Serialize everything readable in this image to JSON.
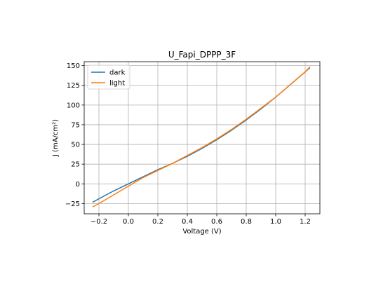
{
  "chart_data": {
    "type": "line",
    "title": "U_Fapi_DPPP_3F",
    "xlabel": "Voltage (V)",
    "ylabel": "J (mA/cm²)",
    "xlim": [
      -0.3,
      1.3
    ],
    "ylim": [
      -38,
      155
    ],
    "xticks": [
      -0.2,
      0.0,
      0.2,
      0.4,
      0.6,
      0.8,
      1.0,
      1.2
    ],
    "xtick_labels": [
      "−0.2",
      "0.0",
      "0.2",
      "0.4",
      "0.6",
      "0.8",
      "1.0",
      "1.2"
    ],
    "yticks": [
      -25,
      0,
      25,
      50,
      75,
      100,
      125,
      150
    ],
    "ytick_labels": [
      "−25",
      "0",
      "25",
      "50",
      "75",
      "100",
      "125",
      "150"
    ],
    "grid": true,
    "legend_position": "top-left",
    "series": [
      {
        "name": "dark",
        "color": "#1f77b4",
        "x": [
          -0.24,
          -0.2,
          -0.1,
          0.0,
          0.1,
          0.2,
          0.3,
          0.4,
          0.5,
          0.6,
          0.7,
          0.8,
          0.9,
          1.0,
          1.1,
          1.2,
          1.23
        ],
        "y": [
          -23,
          -19,
          -9,
          0,
          9,
          18,
          26,
          35,
          45,
          56,
          68,
          81,
          95,
          110,
          126,
          142,
          147
        ]
      },
      {
        "name": "light",
        "color": "#ff7f0e",
        "x": [
          -0.24,
          -0.2,
          -0.1,
          0.0,
          0.1,
          0.2,
          0.3,
          0.4,
          0.5,
          0.6,
          0.7,
          0.8,
          0.9,
          1.0,
          1.1,
          1.2,
          1.23
        ],
        "y": [
          -29,
          -25,
          -14,
          -3,
          8,
          17,
          26,
          36,
          46,
          57,
          69,
          82,
          96,
          110,
          126,
          142,
          148
        ]
      }
    ]
  }
}
